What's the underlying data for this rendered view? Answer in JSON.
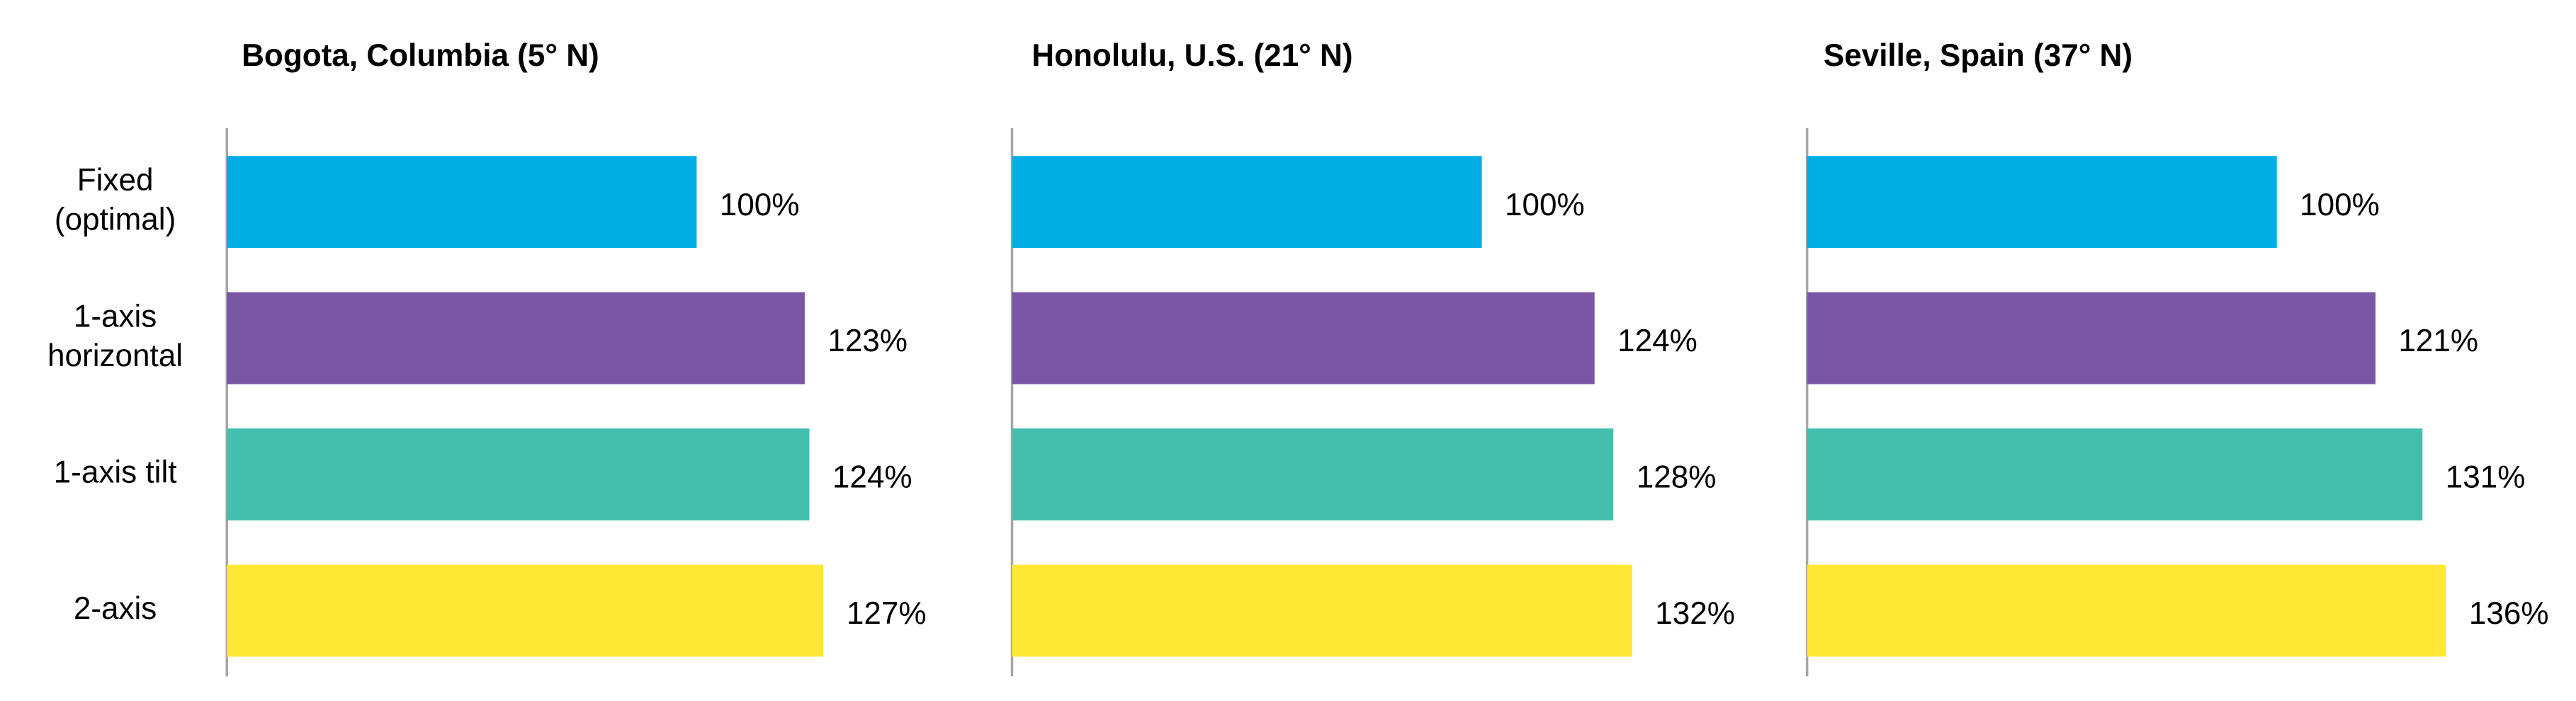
{
  "chart_data": [
    {
      "type": "bar",
      "orientation": "horizontal",
      "title": "Bogota, Columbia  (5° N)",
      "categories": [
        "Fixed (optimal)",
        "1-axis horizontal",
        "1-axis tilt",
        "2-axis"
      ],
      "values": [
        100,
        123,
        124,
        127
      ],
      "value_labels": [
        "100%",
        "123%",
        "124%",
        "127%"
      ],
      "colors": [
        "#00aee5",
        "#7955a5",
        "#45bfad",
        "#ffe835"
      ],
      "xlim": [
        0,
        160
      ]
    },
    {
      "type": "bar",
      "orientation": "horizontal",
      "title": "Honolulu,  U.S. (21° N)",
      "values": [
        100,
        124,
        128,
        132
      ],
      "value_labels": [
        "100%",
        "124%",
        "128%",
        "132%"
      ],
      "colors": [
        "#00aee5",
        "#7955a5",
        "#45bfad",
        "#ffe835"
      ],
      "xlim": [
        0,
        160
      ]
    },
    {
      "type": "bar",
      "orientation": "horizontal",
      "title": "Seville,  Spain (37° N)",
      "values": [
        100,
        121,
        131,
        136
      ],
      "value_labels": [
        "100%",
        "121%",
        "131%",
        "136%"
      ],
      "colors": [
        "#00aee5",
        "#7955a5",
        "#45bfad",
        "#ffe835"
      ],
      "xlim": [
        0,
        160
      ]
    }
  ]
}
